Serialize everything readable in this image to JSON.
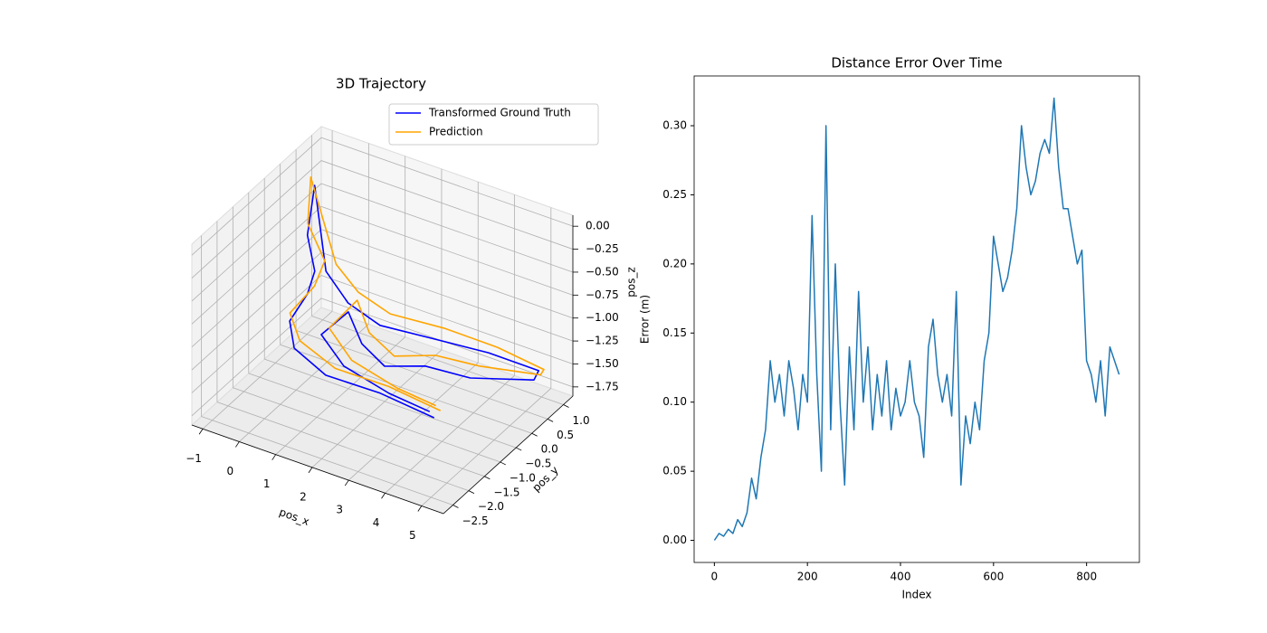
{
  "chart_data": [
    {
      "type": "line3d",
      "title": "3D Trajectory",
      "xlabel": "pos_x",
      "ylabel": "pos_y",
      "zlabel": "pos_z",
      "xlim": [
        -1.3,
        5.6
      ],
      "ylim": [
        -2.8,
        1.3
      ],
      "zlim": [
        -1.85,
        0.12
      ],
      "xticks": [
        {
          "value": -1,
          "label": "−1"
        },
        0,
        1,
        2,
        3,
        4,
        5
      ],
      "yticks": [
        {
          "value": -2.5,
          "label": "−2.5"
        },
        {
          "value": -2,
          "label": "−2.0"
        },
        {
          "value": -1.5,
          "label": "−1.5"
        },
        {
          "value": -1,
          "label": "−1.0"
        },
        {
          "value": -0.5,
          "label": "−0.5"
        },
        {
          "value": 0,
          "label": "0.0"
        },
        0.5,
        {
          "value": 1,
          "label": "1.0"
        }
      ],
      "zticks": [
        {
          "value": -1.75,
          "label": "−1.75"
        },
        {
          "value": -1.5,
          "label": "−1.50"
        },
        {
          "value": -1.25,
          "label": "−1.25"
        },
        {
          "value": -1,
          "label": "−1.00"
        },
        {
          "value": -0.75,
          "label": "−0.75"
        },
        {
          "value": -0.5,
          "label": "−0.50"
        },
        {
          "value": -0.25,
          "label": "−0.25"
        },
        {
          "value": 0,
          "label": "0.00"
        }
      ],
      "grid": true,
      "legend": "upper right",
      "series": [
        {
          "name": "Transformed Ground Truth",
          "color": "#0000ff",
          "x": [
            3.63,
            2.03,
            0.76,
            -0.25,
            -0.53,
            -0.17,
            -0.12,
            -0.45,
            -0.39,
            0.3,
            0.63,
            1.35,
            2.52,
            3.59,
            4.67,
            4.68,
            3.48,
            2.53,
            1.83,
            0.99,
            0.43,
            0.19,
            0.92,
            2.11,
            3.31
          ],
          "y": [
            -0.82,
            -0.68,
            -0.94,
            -0.77,
            -0.59,
            -0.44,
            -0.27,
            -0.12,
            0.04,
            -0.4,
            -0.08,
            0.1,
            0.47,
            0.95,
            1.29,
            1.13,
            0.5,
            0.17,
            -0.31,
            -0.06,
            0.16,
            -0.42,
            -0.55,
            -0.49,
            -0.59
          ],
          "z": [
            -1.7,
            -1.7,
            -1.6,
            -1.5,
            -1.3,
            -1.0,
            -0.8,
            -0.5,
            0.0,
            -0.7,
            -1.1,
            -1.3,
            -1.4,
            -1.55,
            -1.7,
            -1.75,
            -1.7,
            -1.6,
            -1.55,
            -1.5,
            -1.3,
            -1.4,
            -1.6,
            -1.75,
            -1.75
          ]
        },
        {
          "name": "Prediction",
          "color": "#ffa500",
          "x": [
            3.7,
            2.15,
            0.9,
            -0.2,
            -0.6,
            -0.1,
            0.05,
            -0.5,
            -0.55,
            0.45,
            0.8,
            1.5,
            2.7,
            3.75,
            4.85,
            4.8,
            3.6,
            2.7,
            2.0,
            1.1,
            0.55,
            0.3,
            1.05,
            2.25,
            3.4
          ],
          "y": [
            -0.7,
            -0.55,
            -0.8,
            -0.65,
            -0.5,
            -0.3,
            -0.15,
            -0.05,
            0.1,
            -0.25,
            0.05,
            0.25,
            0.6,
            1.05,
            1.25,
            1.2,
            0.65,
            0.3,
            -0.2,
            0.05,
            0.3,
            -0.3,
            -0.45,
            -0.4,
            -0.5
          ],
          "z": [
            -1.65,
            -1.65,
            -1.55,
            -1.45,
            -1.25,
            -0.95,
            -0.7,
            -0.4,
            0.05,
            -0.65,
            -1.0,
            -1.2,
            -1.3,
            -1.5,
            -1.65,
            -1.7,
            -1.6,
            -1.5,
            -1.45,
            -1.4,
            -1.2,
            -1.35,
            -1.55,
            -1.7,
            -1.7
          ]
        }
      ]
    },
    {
      "type": "line",
      "title": "Distance Error Over Time",
      "xlabel": "Index",
      "ylabel": "Error (m)",
      "xlim": [
        -43.5,
        913.5
      ],
      "ylim": [
        -0.016,
        0.336
      ],
      "xticks": [
        0,
        200,
        400,
        600,
        800
      ],
      "yticks": [
        {
          "value": 0,
          "label": "0.00"
        },
        0.05,
        {
          "value": 0.1,
          "label": "0.10"
        },
        0.15,
        {
          "value": 0.2,
          "label": "0.20"
        },
        0.25,
        {
          "value": 0.3,
          "label": "0.30"
        }
      ],
      "color": "#1f77b4",
      "x": [
        0,
        10,
        20,
        30,
        40,
        50,
        60,
        70,
        80,
        90,
        100,
        110,
        120,
        130,
        140,
        150,
        160,
        170,
        180,
        190,
        200,
        210,
        220,
        230,
        240,
        250,
        260,
        270,
        280,
        290,
        300,
        310,
        320,
        330,
        340,
        350,
        360,
        370,
        380,
        390,
        400,
        410,
        420,
        430,
        440,
        450,
        460,
        470,
        480,
        490,
        500,
        510,
        520,
        530,
        540,
        550,
        560,
        570,
        580,
        590,
        600,
        610,
        620,
        630,
        640,
        650,
        660,
        670,
        680,
        690,
        700,
        710,
        720,
        730,
        740,
        750,
        760,
        770,
        780,
        790,
        800,
        810,
        820,
        830,
        840,
        850,
        860,
        870
      ],
      "values": [
        0.0,
        0.005,
        0.003,
        0.008,
        0.005,
        0.015,
        0.01,
        0.02,
        0.045,
        0.03,
        0.06,
        0.08,
        0.13,
        0.1,
        0.12,
        0.09,
        0.13,
        0.11,
        0.08,
        0.12,
        0.1,
        0.235,
        0.12,
        0.05,
        0.3,
        0.08,
        0.2,
        0.1,
        0.04,
        0.14,
        0.08,
        0.18,
        0.1,
        0.14,
        0.08,
        0.12,
        0.09,
        0.13,
        0.08,
        0.11,
        0.09,
        0.1,
        0.13,
        0.1,
        0.09,
        0.06,
        0.14,
        0.16,
        0.12,
        0.1,
        0.12,
        0.09,
        0.18,
        0.04,
        0.09,
        0.07,
        0.1,
        0.08,
        0.13,
        0.15,
        0.22,
        0.2,
        0.18,
        0.19,
        0.21,
        0.24,
        0.3,
        0.27,
        0.25,
        0.26,
        0.28,
        0.29,
        0.28,
        0.32,
        0.27,
        0.24,
        0.24,
        0.22,
        0.2,
        0.21,
        0.13,
        0.12,
        0.1,
        0.13,
        0.09,
        0.14,
        0.13,
        0.12
      ]
    }
  ]
}
